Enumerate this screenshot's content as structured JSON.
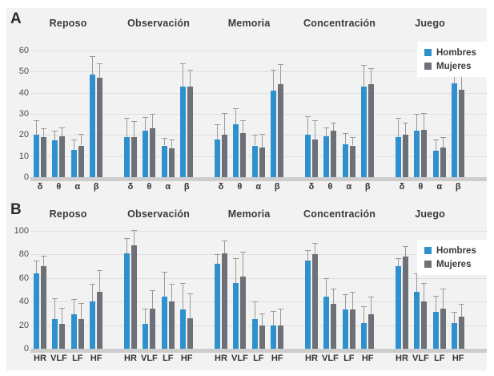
{
  "figure": {
    "background": "#f2f2f2",
    "error_bar_color": "#9a9a9a",
    "legend": {
      "items": [
        {
          "label": "Hombres",
          "color": "#2e91ce"
        },
        {
          "label": "Mujeres",
          "color": "#6d7076"
        }
      ]
    }
  },
  "chart_data": [
    {
      "panel_label": "A",
      "type": "bar",
      "title": "",
      "xlabel": "",
      "ylabel": "",
      "ylim": [
        0,
        60
      ],
      "yticks": [
        0,
        10,
        20,
        30,
        40,
        50,
        60
      ],
      "grid": true,
      "legend_position": "top-right",
      "conditions": [
        "Reposo",
        "Observación",
        "Memoria",
        "Concentración",
        "Juego"
      ],
      "categories": [
        "δ",
        "θ",
        "α",
        "β"
      ],
      "series": [
        {
          "name": "Hombres",
          "color": "#2e91ce",
          "values": [
            [
              20,
              17.5,
              13,
              48.5
            ],
            [
              19,
              22,
              15,
              43
            ],
            [
              18,
              25,
              15,
              41
            ],
            [
              20,
              19.5,
              15.5,
              43
            ],
            [
              19,
              22,
              12.5,
              44.5
            ]
          ],
          "error_tops": [
            [
              27,
              22,
              18,
              57.5
            ],
            [
              28,
              28.5,
              18.5,
              54
            ],
            [
              25,
              32.5,
              20,
              51
            ],
            [
              29,
              23.5,
              21,
              53
            ],
            [
              28,
              30,
              18,
              51.5
            ]
          ]
        },
        {
          "name": "Mujeres",
          "color": "#6d7076",
          "values": [
            [
              19,
              19.5,
              15,
              47
            ],
            [
              19,
              23,
              13.5,
              43
            ],
            [
              20,
              21,
              14,
              44
            ],
            [
              18,
              22,
              15,
              44
            ],
            [
              20,
              22.5,
              14,
              41.5
            ]
          ],
          "error_tops": [
            [
              23,
              23.5,
              20.5,
              54
            ],
            [
              26.5,
              30,
              18,
              51
            ],
            [
              30.5,
              27,
              20.5,
              53.5
            ],
            [
              27,
              26,
              19,
              51.5
            ],
            [
              26,
              30.5,
              19,
              50.5
            ]
          ]
        }
      ]
    },
    {
      "panel_label": "B",
      "type": "bar",
      "title": "",
      "xlabel": "",
      "ylabel": "",
      "ylim": [
        0,
        100
      ],
      "yticks": [
        0,
        20,
        40,
        60,
        80,
        100
      ],
      "grid": true,
      "legend_position": "top-right",
      "conditions": [
        "Reposo",
        "Observación",
        "Memoria",
        "Concentración",
        "Juego"
      ],
      "categories": [
        "HR",
        "VLF",
        "LF",
        "HF"
      ],
      "series": [
        {
          "name": "Hombres",
          "color": "#2e91ce",
          "values": [
            [
              64,
              25,
              29,
              40
            ],
            [
              81,
              21,
              44,
              33
            ],
            [
              72,
              56,
              25,
              20
            ],
            [
              75,
              44,
              33,
              22
            ],
            [
              70,
              48,
              31,
              22
            ]
          ],
          "error_tops": [
            [
              75,
              43,
              42,
              55
            ],
            [
              94,
              34,
              65,
              56
            ],
            [
              80,
              77,
              40,
              32
            ],
            [
              84,
              60,
              46,
              36
            ],
            [
              77,
              64,
              45,
              31
            ]
          ]
        },
        {
          "name": "Mujeres",
          "color": "#6d7076",
          "values": [
            [
              70,
              21,
              25,
              48
            ],
            [
              88,
              34,
              40,
              26
            ],
            [
              81,
              61,
              20,
              20
            ],
            [
              80,
              38,
              33,
              29
            ],
            [
              78,
              40,
              34,
              27
            ]
          ],
          "error_tops": [
            [
              79,
              35,
              39,
              67
            ],
            [
              101,
              50,
              55,
              47
            ],
            [
              92,
              82,
              30,
              34
            ],
            [
              90,
              51,
              48,
              44
            ],
            [
              87,
              56,
              51,
              38
            ]
          ]
        }
      ]
    }
  ]
}
